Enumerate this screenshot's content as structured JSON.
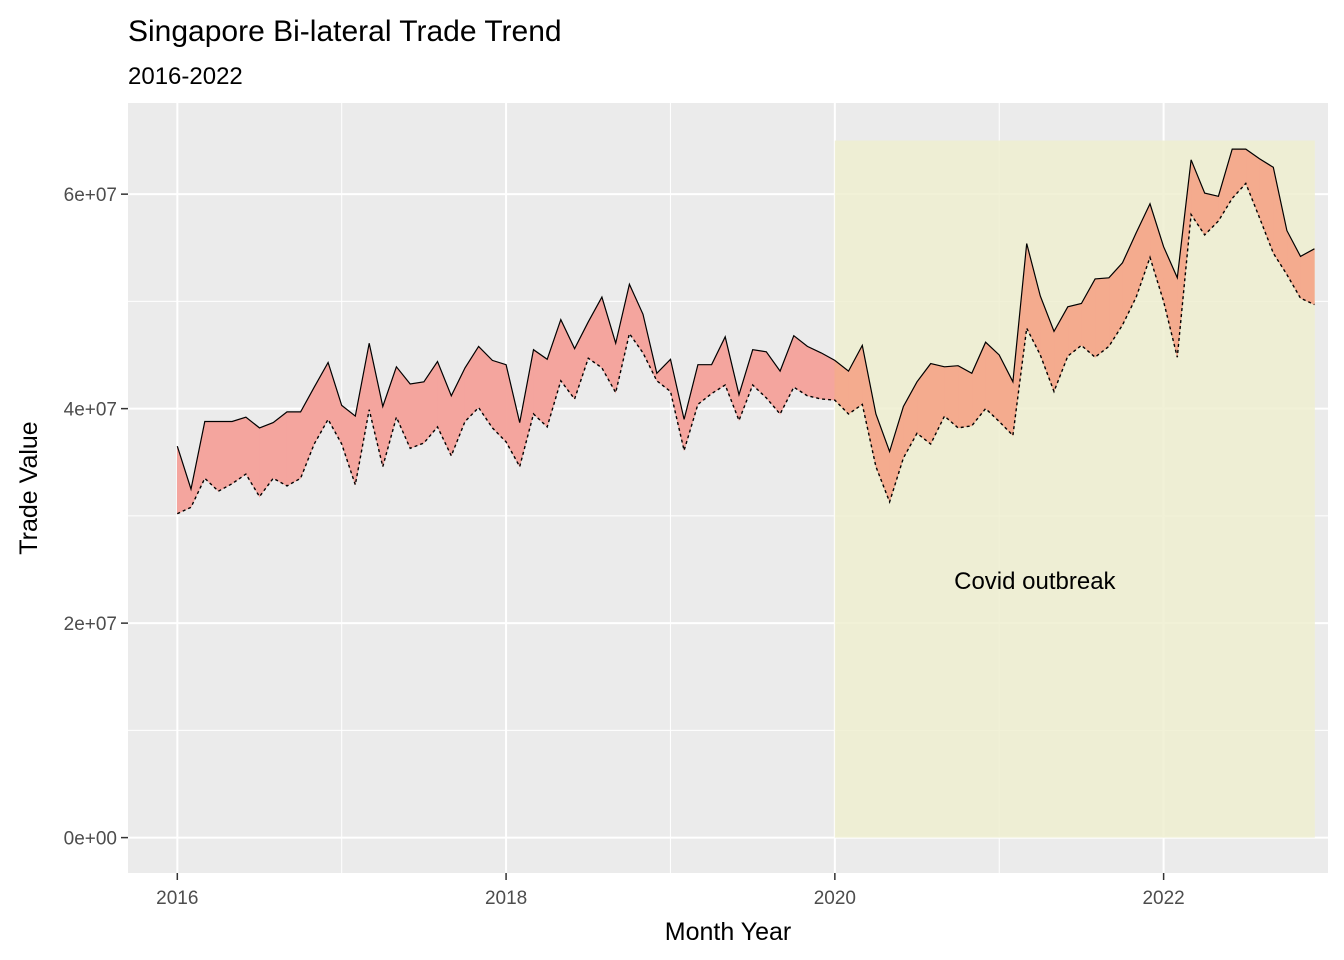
{
  "chart_data": {
    "type": "area",
    "title": "Singapore Bi-lateral Trade Trend",
    "subtitle": "2016-2022",
    "xlabel": "Month Year",
    "ylabel": "Trade Value",
    "x_ticks": [
      "2016",
      "2018",
      "2020",
      "2022"
    ],
    "y_ticks": [
      "0e+00",
      "2e+07",
      "4e+07",
      "6e+07"
    ],
    "xlim": [
      2015.7,
      2023.0
    ],
    "ylim": [
      -3300000,
      68500000
    ],
    "grid": true,
    "annotation": {
      "label": "Covid outbreak",
      "shaded_region": {
        "x": [
          2020.0,
          2022.92
        ],
        "y": [
          0,
          65000000
        ]
      }
    },
    "x": [
      2016.0,
      2016.083,
      2016.167,
      2016.25,
      2016.333,
      2016.417,
      2016.5,
      2016.583,
      2016.667,
      2016.75,
      2016.833,
      2016.917,
      2017.0,
      2017.083,
      2017.167,
      2017.25,
      2017.333,
      2017.417,
      2017.5,
      2017.583,
      2017.667,
      2017.75,
      2017.833,
      2017.917,
      2018.0,
      2018.083,
      2018.167,
      2018.25,
      2018.333,
      2018.417,
      2018.5,
      2018.583,
      2018.667,
      2018.75,
      2018.833,
      2018.917,
      2019.0,
      2019.083,
      2019.167,
      2019.25,
      2019.333,
      2019.417,
      2019.5,
      2019.583,
      2019.667,
      2019.75,
      2019.833,
      2019.917,
      2020.0,
      2020.083,
      2020.167,
      2020.25,
      2020.333,
      2020.417,
      2020.5,
      2020.583,
      2020.667,
      2020.75,
      2020.833,
      2020.917,
      2021.0,
      2021.083,
      2021.167,
      2021.25,
      2021.333,
      2021.417,
      2021.5,
      2021.583,
      2021.667,
      2021.75,
      2021.833,
      2021.917,
      2022.0,
      2022.083,
      2022.167,
      2022.25,
      2022.333,
      2022.417,
      2022.5,
      2022.583,
      2022.667,
      2022.75,
      2022.833,
      2022.917
    ],
    "series": [
      {
        "values": [
          36.5,
          32.5,
          38.8,
          38.8,
          38.8,
          39.2,
          38.2,
          38.7,
          39.7,
          39.7,
          42.0,
          44.3,
          40.3,
          39.3,
          46.1,
          40.2,
          43.9,
          42.3,
          42.5,
          44.4,
          41.2,
          43.8,
          45.8,
          44.5,
          44.1,
          38.7,
          45.5,
          44.6,
          48.3,
          45.6,
          48.1,
          50.4,
          46.1,
          51.6,
          48.8,
          43.3,
          44.6,
          39.0,
          44.1,
          44.1,
          46.7,
          41.3,
          45.5,
          45.3,
          43.5,
          46.8,
          45.8,
          45.2,
          44.5,
          43.5,
          45.9,
          39.5,
          36.0,
          40.2,
          42.5,
          44.2,
          43.9,
          44.0,
          43.3,
          46.2,
          45.0,
          42.5,
          55.4,
          50.5,
          47.2,
          49.5,
          49.8,
          52.1,
          52.2,
          53.6,
          56.4,
          59.1,
          55.1,
          52.2,
          63.2,
          60.1,
          59.8,
          64.2,
          64.2,
          63.3,
          62.5,
          56.6,
          54.2,
          54.9
        ]
      },
      {
        "values": [
          30.2,
          30.8,
          33.5,
          32.3,
          33.0,
          33.9,
          31.8,
          33.5,
          32.8,
          33.5,
          36.7,
          39.0,
          36.7,
          32.9,
          39.9,
          34.6,
          39.2,
          36.3,
          36.8,
          38.3,
          35.6,
          38.8,
          40.1,
          38.2,
          36.9,
          34.6,
          39.5,
          38.3,
          42.6,
          40.9,
          44.7,
          43.8,
          41.5,
          47.0,
          45.2,
          42.6,
          41.6,
          36.1,
          40.4,
          41.4,
          42.2,
          38.9,
          42.2,
          41.0,
          39.5,
          42.0,
          41.2,
          40.9,
          40.8,
          39.5,
          40.4,
          34.6,
          31.3,
          35.4,
          37.7,
          36.7,
          39.3,
          38.2,
          38.4,
          40.0,
          38.8,
          37.5,
          47.5,
          45.0,
          41.6,
          44.9,
          45.9,
          44.8,
          45.8,
          47.8,
          50.4,
          54.1,
          50.0,
          44.8,
          58.1,
          56.2,
          57.5,
          59.6,
          61.0,
          57.8,
          54.5,
          52.5,
          50.3,
          49.7
        ]
      }
    ],
    "value_unit_multiplier": 1000000,
    "colors": {
      "panel": "#ebebeb",
      "grid": "#ffffff",
      "ribbon_pre": "#f4a59e",
      "ribbon_covid": "#f4ab8e",
      "covid_region": "#eeeed0",
      "line": "#000000"
    }
  }
}
